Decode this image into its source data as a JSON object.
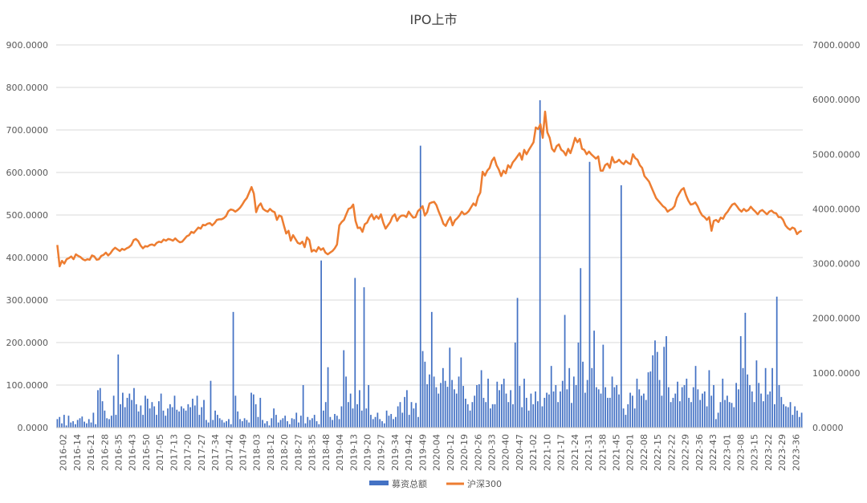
{
  "chart_data": {
    "type": "bar+line",
    "title": "IPO上市",
    "y_left": {
      "range": [
        0,
        900
      ],
      "ticks": [
        "0.0000",
        "100.0000",
        "200.0000",
        "300.0000",
        "400.0000",
        "500.0000",
        "600.0000",
        "700.0000",
        "800.0000",
        "900.0000"
      ]
    },
    "y_right": {
      "range": [
        0,
        7000
      ],
      "ticks": [
        "0.0000",
        "1000.0000",
        "2000.0000",
        "3000.0000",
        "4000.0000",
        "5000.0000",
        "6000.0000",
        "7000.0000"
      ]
    },
    "x_tick_labels": [
      "2016-02",
      "2016-14",
      "2016-21",
      "2016-28",
      "2016-35",
      "2016-43",
      "2016-50",
      "2017-05",
      "2017-13",
      "2017-20",
      "2017-27",
      "2017-34",
      "2017-42",
      "2017-49",
      "2018-03",
      "2018-12",
      "2018-20",
      "2018-27",
      "2018-35",
      "2018-48",
      "2019-04",
      "2019-13",
      "2019-20",
      "2019-27",
      "2019-34",
      "2019-42",
      "2019-49",
      "2020-04",
      "2020-12",
      "2020-19",
      "2020-26",
      "2020-33",
      "2020-40",
      "2020-47",
      "2021-02",
      "2021-10",
      "2021-17",
      "2021-24",
      "2021-31",
      "2021-38",
      "2021-45",
      "2022-01",
      "2022-08",
      "2022-15",
      "2022-22",
      "2022-29",
      "2022-36",
      "2022-43",
      "2023-01",
      "2023-08",
      "2023-15",
      "2023-22",
      "2023-29",
      "2023-36"
    ],
    "grid": true,
    "legend_position": "bottom",
    "series": [
      {
        "name": "募资总额",
        "type": "bar",
        "axis": "left",
        "color": "#4472C4",
        "values": [
          20,
          25,
          10,
          30,
          5,
          28,
          12,
          15,
          8,
          18,
          22,
          26,
          14,
          10,
          20,
          12,
          35,
          8,
          88,
          93,
          62,
          40,
          22,
          20,
          28,
          75,
          30,
          172,
          55,
          82,
          48,
          70,
          80,
          65,
          93,
          55,
          38,
          52,
          30,
          75,
          68,
          45,
          60,
          50,
          30,
          62,
          80,
          40,
          28,
          45,
          55,
          48,
          75,
          42,
          38,
          50,
          45,
          40,
          55,
          48,
          68,
          52,
          75,
          30,
          48,
          65,
          18,
          12,
          110,
          18,
          40,
          30,
          22,
          18,
          12,
          15,
          20,
          8,
          272,
          75,
          38,
          20,
          15,
          22,
          18,
          12,
          82,
          78,
          55,
          25,
          70,
          18,
          10,
          15,
          5,
          22,
          45,
          30,
          12,
          18,
          22,
          28,
          15,
          8,
          22,
          20,
          35,
          12,
          28,
          100,
          10,
          25,
          18,
          22,
          30,
          15,
          8,
          393,
          40,
          60,
          142,
          25,
          18,
          32,
          28,
          20,
          50,
          182,
          120,
          60,
          80,
          45,
          352,
          55,
          88,
          40,
          330,
          45,
          100,
          30,
          20,
          25,
          35,
          20,
          15,
          10,
          40,
          28,
          32,
          20,
          25,
          50,
          60,
          35,
          72,
          88,
          30,
          60,
          45,
          58,
          25,
          663,
          180,
          155,
          102,
          125,
          272,
          120,
          95,
          80,
          105,
          140,
          110,
          96,
          188,
          112,
          90,
          80,
          120,
          165,
          98,
          68,
          55,
          40,
          60,
          75,
          100,
          102,
          135,
          70,
          60,
          115,
          45,
          55,
          55,
          108,
          88,
          102,
          115,
          80,
          60,
          88,
          55,
          200,
          305,
          98,
          48,
          115,
          70,
          40,
          80,
          55,
          85,
          62,
          770,
          50,
          70,
          82,
          78,
          145,
          85,
          100,
          60,
          85,
          110,
          265,
          90,
          140,
          58,
          120,
          100,
          200,
          375,
          155,
          82,
          112,
          625,
          140,
          228,
          95,
          90,
          80,
          195,
          95,
          70,
          70,
          120,
          95,
          100,
          78,
          570,
          45,
          30,
          55,
          82,
          75,
          45,
          115,
          90,
          75,
          80,
          65,
          130,
          132,
          170,
          205,
          178,
          112,
          75,
          190,
          215,
          95,
          60,
          70,
          80,
          108,
          62,
          95,
          100,
          115,
          70,
          60,
          95,
          145,
          90,
          65,
          80,
          85,
          50,
          135,
          75,
          100,
          20,
          35,
          60,
          115,
          65,
          75,
          60,
          58,
          48,
          105,
          90,
          215,
          140,
          270,
          125,
          100,
          85,
          60,
          158,
          105,
          80,
          62,
          140,
          78,
          85,
          140,
          55,
          308,
          100,
          72,
          55,
          50,
          48,
          60,
          30,
          50,
          40,
          25,
          35
        ]
      },
      {
        "name": "沪深300",
        "type": "line",
        "axis": "right",
        "color": "#ED7D31",
        "values": [
          3340,
          2950,
          3050,
          3000,
          3080,
          3100,
          3130,
          3080,
          3170,
          3140,
          3120,
          3080,
          3060,
          3080,
          3070,
          3150,
          3130,
          3070,
          3080,
          3140,
          3160,
          3200,
          3150,
          3190,
          3250,
          3290,
          3260,
          3230,
          3270,
          3250,
          3280,
          3300,
          3340,
          3430,
          3450,
          3410,
          3330,
          3280,
          3320,
          3310,
          3340,
          3350,
          3330,
          3380,
          3400,
          3390,
          3440,
          3420,
          3450,
          3440,
          3420,
          3460,
          3420,
          3390,
          3400,
          3450,
          3500,
          3520,
          3580,
          3560,
          3610,
          3660,
          3640,
          3710,
          3700,
          3730,
          3740,
          3700,
          3740,
          3800,
          3810,
          3810,
          3830,
          3870,
          3960,
          3990,
          3980,
          3950,
          3980,
          4020,
          4080,
          4150,
          4200,
          4300,
          4400,
          4280,
          3940,
          4050,
          4100,
          4000,
          3970,
          3950,
          4000,
          3960,
          3940,
          3800,
          3880,
          3860,
          3700,
          3550,
          3600,
          3420,
          3520,
          3450,
          3380,
          3360,
          3400,
          3300,
          3480,
          3430,
          3220,
          3250,
          3220,
          3300,
          3250,
          3280,
          3200,
          3170,
          3200,
          3230,
          3280,
          3350,
          3700,
          3760,
          3800,
          3900,
          4000,
          4020,
          4080,
          3780,
          3650,
          3660,
          3580,
          3720,
          3750,
          3840,
          3900,
          3810,
          3870,
          3820,
          3900,
          3750,
          3640,
          3700,
          3760,
          3860,
          3900,
          3780,
          3850,
          3880,
          3880,
          3850,
          3950,
          3890,
          3840,
          3850,
          3960,
          4000,
          4050,
          3880,
          3940,
          4100,
          4120,
          4130,
          4070,
          3950,
          3850,
          3730,
          3690,
          3780,
          3850,
          3700,
          3790,
          3830,
          3880,
          3950,
          3900,
          3920,
          3960,
          4030,
          4100,
          4060,
          4220,
          4300,
          4680,
          4610,
          4700,
          4750,
          4880,
          4940,
          4800,
          4720,
          4600,
          4700,
          4650,
          4800,
          4750,
          4850,
          4900,
          4960,
          5020,
          4900,
          5080,
          5000,
          5080,
          5150,
          5220,
          5490,
          5460,
          5550,
          5300,
          5780,
          5400,
          5300,
          5100,
          5050,
          5150,
          5180,
          5080,
          5050,
          4980,
          5100,
          5020,
          5150,
          5300,
          5220,
          5280,
          5100,
          5080,
          5000,
          5050,
          5000,
          4960,
          4920,
          4960,
          4700,
          4700,
          4800,
          4830,
          4750,
          4950,
          4850,
          4860,
          4900,
          4850,
          4820,
          4880,
          4840,
          4820,
          5000,
          4930,
          4900,
          4800,
          4750,
          4600,
          4550,
          4500,
          4400,
          4300,
          4200,
          4150,
          4100,
          4050,
          4020,
          3950,
          3980,
          4000,
          4050,
          4200,
          4280,
          4350,
          4380,
          4250,
          4150,
          4080,
          4090,
          4120,
          4050,
          3950,
          3880,
          3850,
          3800,
          3850,
          3600,
          3780,
          3800,
          3760,
          3840,
          3820,
          3900,
          3950,
          4020,
          4080,
          4100,
          4050,
          3990,
          3950,
          4000,
          3960,
          3980,
          4040,
          3990,
          3950,
          3900,
          3960,
          3980,
          3940,
          3900,
          3950,
          3970,
          3930,
          3920,
          3850,
          3850,
          3800,
          3700,
          3650,
          3620,
          3660,
          3640,
          3540,
          3580,
          3600
        ]
      }
    ]
  }
}
